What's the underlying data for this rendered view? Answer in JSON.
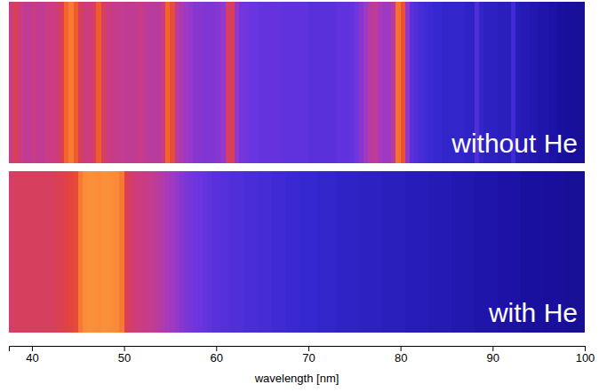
{
  "chart_data": {
    "type": "heatmap",
    "xlabel": "wavelength [nm]",
    "xlim": [
      37.5,
      100
    ],
    "xticks": [
      40,
      50,
      60,
      70,
      80,
      90,
      100
    ],
    "tick_labels": "x",
    "zlim": [
      0,
      1
    ],
    "bins": [
      37.5,
      38,
      38.5,
      39,
      39.5,
      40,
      40.5,
      41,
      41.5,
      42,
      42.5,
      43,
      43.5,
      44,
      44.5,
      45,
      45.5,
      46,
      46.5,
      47,
      47.5,
      48,
      48.5,
      49,
      49.5,
      50,
      50.5,
      51,
      51.5,
      52,
      52.5,
      53,
      53.5,
      54,
      54.5,
      55,
      55.5,
      56,
      56.5,
      57,
      57.5,
      58,
      58.5,
      59,
      59.5,
      60,
      60.5,
      61,
      61.5,
      62,
      62.5,
      63,
      63.5,
      64,
      64.5,
      65,
      65.5,
      66,
      66.5,
      67,
      67.5,
      68,
      68.5,
      69,
      69.5,
      70,
      70.5,
      71,
      71.5,
      72,
      72.5,
      73,
      73.5,
      74,
      74.5,
      75,
      75.5,
      76,
      76.5,
      77,
      77.5,
      78,
      78.5,
      79,
      79.5,
      80,
      80.5,
      81,
      81.5,
      82,
      82.5,
      83,
      83.5,
      84,
      84.5,
      85,
      85.5,
      86,
      86.5,
      87,
      87.5,
      88,
      88.5,
      89,
      89.5,
      90,
      90.5,
      91,
      91.5,
      92,
      92.5,
      93,
      93.5,
      94,
      94.5,
      95,
      95.5,
      96,
      96.5,
      97,
      97.5,
      98,
      98.5,
      99,
      99.5,
      100
    ],
    "series": [
      {
        "name": "without He",
        "values": [
          0.55,
          0.62,
          0.55,
          0.52,
          0.52,
          0.54,
          0.52,
          0.52,
          0.55,
          0.55,
          0.56,
          0.62,
          0.82,
          0.88,
          0.78,
          0.6,
          0.56,
          0.55,
          0.6,
          0.78,
          0.6,
          0.55,
          0.54,
          0.53,
          0.53,
          0.52,
          0.52,
          0.52,
          0.54,
          0.52,
          0.5,
          0.5,
          0.5,
          0.55,
          0.82,
          0.7,
          0.5,
          0.47,
          0.44,
          0.42,
          0.4,
          0.4,
          0.39,
          0.39,
          0.39,
          0.4,
          0.42,
          0.58,
          0.62,
          0.42,
          0.37,
          0.36,
          0.35,
          0.35,
          0.34,
          0.34,
          0.34,
          0.34,
          0.34,
          0.33,
          0.33,
          0.33,
          0.33,
          0.33,
          0.33,
          0.32,
          0.32,
          0.32,
          0.32,
          0.32,
          0.32,
          0.33,
          0.33,
          0.33,
          0.34,
          0.36,
          0.4,
          0.44,
          0.5,
          0.52,
          0.46,
          0.44,
          0.44,
          0.5,
          0.86,
          0.72,
          0.42,
          0.32,
          0.3,
          0.28,
          0.27,
          0.26,
          0.25,
          0.25,
          0.24,
          0.24,
          0.24,
          0.24,
          0.24,
          0.23,
          0.23,
          0.3,
          0.24,
          0.22,
          0.22,
          0.22,
          0.21,
          0.21,
          0.21,
          0.27,
          0.2,
          0.19,
          0.19,
          0.18,
          0.18,
          0.17,
          0.17,
          0.16,
          0.16,
          0.15,
          0.15,
          0.14,
          0.14,
          0.13,
          0.13
        ]
      },
      {
        "name": "with He",
        "values": [
          0.58,
          0.6,
          0.6,
          0.6,
          0.6,
          0.6,
          0.6,
          0.6,
          0.6,
          0.6,
          0.62,
          0.62,
          0.64,
          0.66,
          0.7,
          0.88,
          0.94,
          0.95,
          0.95,
          0.94,
          0.95,
          0.95,
          0.94,
          0.93,
          0.88,
          0.62,
          0.58,
          0.56,
          0.55,
          0.54,
          0.53,
          0.52,
          0.5,
          0.48,
          0.46,
          0.44,
          0.42,
          0.4,
          0.38,
          0.37,
          0.36,
          0.35,
          0.34,
          0.33,
          0.32,
          0.32,
          0.31,
          0.31,
          0.3,
          0.3,
          0.3,
          0.29,
          0.29,
          0.29,
          0.28,
          0.28,
          0.28,
          0.27,
          0.27,
          0.27,
          0.26,
          0.26,
          0.26,
          0.25,
          0.25,
          0.25,
          0.25,
          0.24,
          0.24,
          0.24,
          0.24,
          0.23,
          0.23,
          0.23,
          0.23,
          0.23,
          0.22,
          0.22,
          0.22,
          0.22,
          0.22,
          0.21,
          0.21,
          0.21,
          0.21,
          0.21,
          0.2,
          0.2,
          0.2,
          0.2,
          0.2,
          0.19,
          0.19,
          0.19,
          0.19,
          0.19,
          0.18,
          0.18,
          0.18,
          0.18,
          0.18,
          0.17,
          0.17,
          0.17,
          0.17,
          0.17,
          0.16,
          0.16,
          0.16,
          0.16,
          0.16,
          0.15,
          0.15,
          0.15,
          0.15,
          0.15,
          0.14,
          0.14,
          0.14,
          0.14,
          0.14,
          0.13,
          0.13,
          0.13,
          0.13
        ]
      }
    ]
  }
}
